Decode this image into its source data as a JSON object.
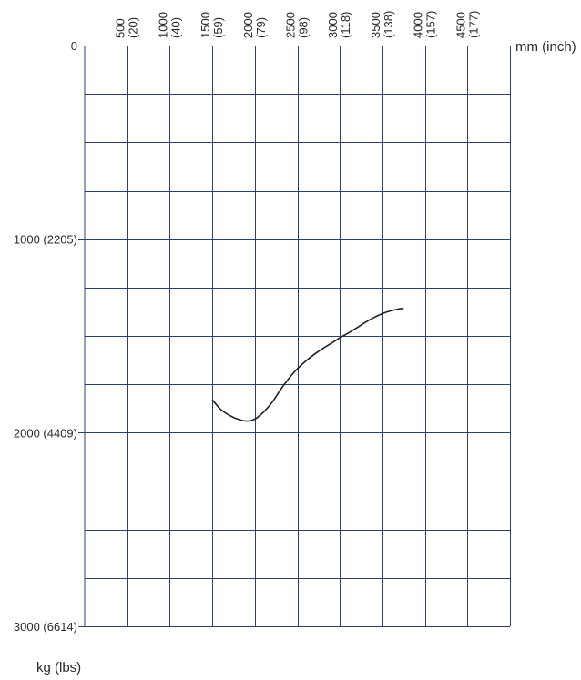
{
  "chart_data": {
    "type": "line",
    "title": "",
    "x_unit_label": "mm (inch)",
    "y_unit_label": "kg (lbs)",
    "xlim": [
      0,
      5000
    ],
    "ylim": [
      0,
      3000
    ],
    "y_axis_inverted": true,
    "x_axis_position": "top",
    "x_ticks": [
      {
        "value": 500,
        "line1": "500",
        "line2": "(20)"
      },
      {
        "value": 1000,
        "line1": "1000",
        "line2": "(40)"
      },
      {
        "value": 1500,
        "line1": "1500",
        "line2": "(59)"
      },
      {
        "value": 2000,
        "line1": "2000",
        "line2": "(79)"
      },
      {
        "value": 2500,
        "line1": "2500",
        "line2": "(98)"
      },
      {
        "value": 3000,
        "line1": "3000",
        "line2": "(118)"
      },
      {
        "value": 3500,
        "line1": "3500",
        "line2": "(138)"
      },
      {
        "value": 4000,
        "line1": "4000",
        "line2": "(157)"
      },
      {
        "value": 4500,
        "line1": "4500",
        "line2": "(177)"
      }
    ],
    "x_grid_values": [
      500,
      1000,
      1500,
      2000,
      2500,
      3000,
      3500,
      4000,
      4500,
      5000
    ],
    "y_ticks": [
      {
        "value": 0,
        "label": "0"
      },
      {
        "value": 1000,
        "label": "1000 (2205)"
      },
      {
        "value": 2000,
        "label": "2000 (4409)"
      },
      {
        "value": 3000,
        "label": "3000 (6614)"
      }
    ],
    "y_grid_step": 250,
    "grid": true,
    "series": [
      {
        "color": "#222222",
        "x": [
          1500,
          1600,
          1700,
          1800,
          1900,
          2000,
          2100,
          2200,
          2300,
          2400,
          2500,
          2600,
          2700,
          2800,
          2900,
          3000,
          3100,
          3200,
          3300,
          3400,
          3500,
          3600,
          3700,
          3750
        ],
        "y": [
          1830,
          1880,
          1910,
          1930,
          1940,
          1930,
          1895,
          1845,
          1780,
          1720,
          1670,
          1630,
          1595,
          1565,
          1538,
          1510,
          1485,
          1458,
          1430,
          1405,
          1385,
          1370,
          1360,
          1358
        ]
      }
    ]
  }
}
